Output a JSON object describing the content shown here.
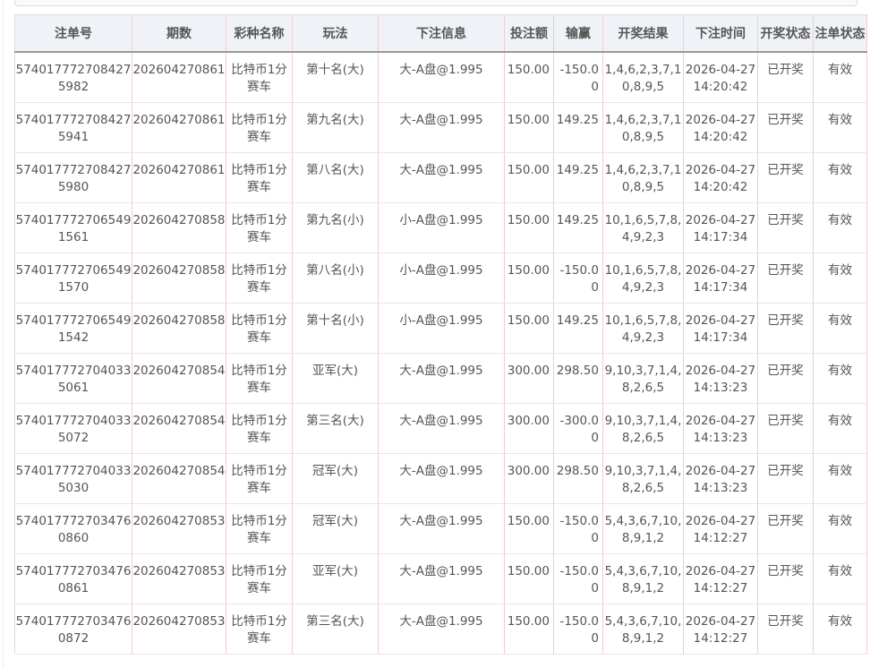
{
  "headers": [
    "注单号",
    "期数",
    "彩种名称",
    "玩法",
    "下注信息",
    "投注额",
    "输赢",
    "开奖结果",
    "下注时间",
    "开奖状态",
    "注单状态"
  ],
  "rows": [
    [
      "5740177727084275982",
      "202604270861",
      "比特币1分赛车",
      "第十名(大)",
      "大-A盘@1.995",
      "150.00",
      "-150.00",
      "1,4,6,2,3,7,10,8,9,5",
      "2026-04-27 14:20:42",
      "已开奖",
      "有效"
    ],
    [
      "5740177727084275941",
      "202604270861",
      "比特币1分赛车",
      "第九名(大)",
      "大-A盘@1.995",
      "150.00",
      "149.25",
      "1,4,6,2,3,7,10,8,9,5",
      "2026-04-27 14:20:42",
      "已开奖",
      "有效"
    ],
    [
      "5740177727084275980",
      "202604270861",
      "比特币1分赛车",
      "第八名(大)",
      "大-A盘@1.995",
      "150.00",
      "149.25",
      "1,4,6,2,3,7,10,8,9,5",
      "2026-04-27 14:20:42",
      "已开奖",
      "有效"
    ],
    [
      "5740177727065491561",
      "202604270858",
      "比特币1分赛车",
      "第九名(小)",
      "小-A盘@1.995",
      "150.00",
      "149.25",
      "10,1,6,5,7,8,4,9,2,3",
      "2026-04-27 14:17:34",
      "已开奖",
      "有效"
    ],
    [
      "5740177727065491570",
      "202604270858",
      "比特币1分赛车",
      "第八名(小)",
      "小-A盘@1.995",
      "150.00",
      "-150.00",
      "10,1,6,5,7,8,4,9,2,3",
      "2026-04-27 14:17:34",
      "已开奖",
      "有效"
    ],
    [
      "5740177727065491542",
      "202604270858",
      "比特币1分赛车",
      "第十名(小)",
      "小-A盘@1.995",
      "150.00",
      "149.25",
      "10,1,6,5,7,8,4,9,2,3",
      "2026-04-27 14:17:34",
      "已开奖",
      "有效"
    ],
    [
      "5740177727040335061",
      "202604270854",
      "比特币1分赛车",
      "亚军(大)",
      "大-A盘@1.995",
      "300.00",
      "298.50",
      "9,10,3,7,1,4,8,2,6,5",
      "2026-04-27 14:13:23",
      "已开奖",
      "有效"
    ],
    [
      "5740177727040335072",
      "202604270854",
      "比特币1分赛车",
      "第三名(大)",
      "大-A盘@1.995",
      "300.00",
      "-300.00",
      "9,10,3,7,1,4,8,2,6,5",
      "2026-04-27 14:13:23",
      "已开奖",
      "有效"
    ],
    [
      "5740177727040335030",
      "202604270854",
      "比特币1分赛车",
      "冠军(大)",
      "大-A盘@1.995",
      "300.00",
      "298.50",
      "9,10,3,7,1,4,8,2,6,5",
      "2026-04-27 14:13:23",
      "已开奖",
      "有效"
    ],
    [
      "5740177727034760860",
      "202604270853",
      "比特币1分赛车",
      "冠军(大)",
      "大-A盘@1.995",
      "150.00",
      "-150.00",
      "5,4,3,6,7,10,8,9,1,2",
      "2026-04-27 14:12:27",
      "已开奖",
      "有效"
    ],
    [
      "5740177727034760861",
      "202604270853",
      "比特币1分赛车",
      "亚军(大)",
      "大-A盘@1.995",
      "150.00",
      "-150.00",
      "5,4,3,6,7,10,8,9,1,2",
      "2026-04-27 14:12:27",
      "已开奖",
      "有效"
    ],
    [
      "5740177727034760872",
      "202604270853",
      "比特币1分赛车",
      "第三名(大)",
      "大-A盘@1.995",
      "150.00",
      "-150.00",
      "5,4,3,6,7,10,8,9,1,2",
      "2026-04-27 14:12:27",
      "已开奖",
      "有效"
    ]
  ]
}
